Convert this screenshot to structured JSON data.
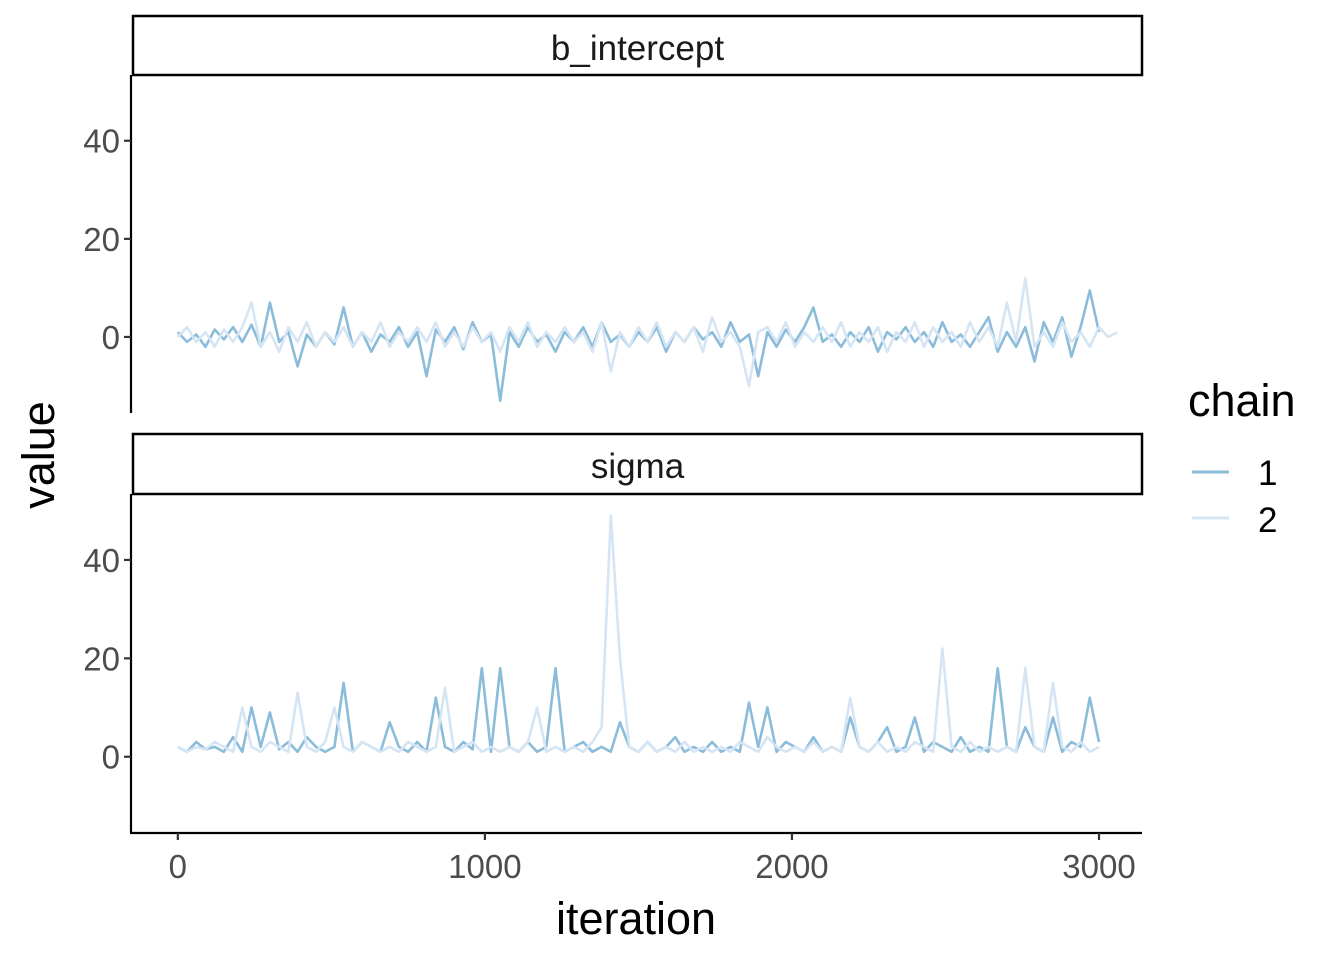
{
  "chart_data": {
    "type": "line",
    "xlabel": "iteration",
    "ylabel": "value",
    "legend_title": "chain",
    "legend_placement": "right",
    "grid": false,
    "xlim": [
      -146,
      3140
    ],
    "ylim": [
      -15.5,
      53.4
    ],
    "xticks": [
      0,
      1000,
      2000,
      3000
    ],
    "xtick_labels": [
      "0",
      "1000",
      "2000",
      "3000"
    ],
    "yticks": [
      0,
      20,
      40
    ],
    "ytick_labels": [
      "0",
      "20",
      "40"
    ],
    "x_step": 30,
    "chains": [
      {
        "name": "1",
        "color": "#8bbcda"
      },
      {
        "name": "2",
        "color": "#d5e5f4"
      }
    ],
    "panels": [
      {
        "title": "b_intercept",
        "series": [
          {
            "name": "1",
            "values": [
              1,
              -1,
              0.5,
              -2,
              1.5,
              -0.5,
              2,
              -1,
              2.5,
              -2,
              7,
              -1,
              1,
              -6,
              0.5,
              -2,
              1,
              -1.5,
              6,
              -2,
              1,
              -3,
              0.5,
              -1,
              2,
              -2,
              1,
              -8,
              1.5,
              -1,
              2,
              -2.5,
              3,
              -1,
              0.5,
              -13,
              1,
              -2,
              2,
              -1,
              0.5,
              -3,
              1,
              -1,
              2,
              -2,
              3,
              -1,
              0.5,
              -2,
              1,
              -1,
              2,
              -3,
              1,
              -1,
              2,
              -0.5,
              1,
              -2,
              3,
              -1,
              0.5,
              -8,
              1,
              -2,
              1.5,
              -1,
              2,
              6,
              -1,
              0.5,
              -2,
              1,
              -1,
              2,
              -3,
              1,
              -0.5,
              2,
              -1,
              1,
              -2,
              3,
              -1,
              0.5,
              -2,
              1,
              4,
              -3,
              1,
              -2,
              2,
              -5,
              3,
              -1,
              4,
              -4,
              2,
              9.5,
              1
            ]
          },
          {
            "name": "2",
            "values": [
              0,
              2,
              -1,
              1,
              -2,
              1.5,
              -1,
              2,
              7,
              -2,
              1,
              -3,
              2,
              -1,
              3,
              -2,
              1,
              -1,
              2,
              -2,
              1,
              -1,
              3,
              -2,
              1,
              -1,
              2,
              -1,
              3,
              -2,
              1,
              -2,
              2,
              -1,
              1,
              -3,
              2,
              -1,
              3,
              -2,
              1,
              -1,
              2,
              -1,
              1,
              -3,
              3,
              -7,
              1,
              -2,
              2,
              -1,
              3,
              -2,
              1,
              -1,
              2,
              -3,
              4,
              -1,
              1,
              -2,
              -10,
              1,
              2,
              -1,
              3,
              -2,
              1,
              -1,
              2,
              -1,
              3,
              -2,
              1,
              -1,
              2,
              -3,
              1,
              -1,
              3,
              -2,
              2,
              -1,
              1,
              -2,
              3,
              -1,
              2,
              -2,
              7,
              -1,
              12,
              -2,
              1,
              -2,
              3,
              -1,
              1,
              -2,
              2,
              0,
              1
            ]
          }
        ]
      },
      {
        "title": "sigma",
        "series": [
          {
            "name": "1",
            "values": [
              2,
              1,
              3,
              1.5,
              2,
              1,
              4,
              1,
              10,
              2,
              9,
              1.5,
              3,
              1,
              4,
              2,
              1,
              2,
              15,
              1,
              3,
              2,
              1,
              7,
              2,
              1,
              3,
              1,
              12,
              2,
              1,
              3,
              1.5,
              18,
              1,
              18,
              2,
              1,
              3,
              1,
              2,
              18,
              1,
              2,
              3,
              1,
              2,
              1,
              7,
              2,
              1,
              3,
              1,
              2,
              4,
              1,
              2,
              1,
              3,
              1,
              2,
              1,
              11,
              2,
              10,
              1,
              3,
              2,
              1,
              4,
              1,
              2,
              1,
              8,
              2,
              1,
              3,
              6,
              1,
              2,
              8,
              1,
              3,
              2,
              1,
              4,
              1,
              2,
              1,
              18,
              2,
              1,
              6,
              2,
              1,
              8,
              1,
              3,
              2,
              12,
              3
            ]
          },
          {
            "name": "2",
            "values": [
              2,
              1,
              2,
              1.5,
              3,
              2,
              1,
              10,
              2,
              1,
              3,
              2,
              1,
              13,
              2,
              1,
              3,
              10,
              2,
              1,
              3,
              2,
              1,
              2,
              1,
              3,
              2,
              1,
              2,
              14,
              1,
              2,
              3,
              1,
              2,
              1,
              2,
              1,
              3,
              10,
              1,
              2,
              1,
              2,
              1,
              3,
              6,
              49,
              20,
              2,
              1,
              3,
              1,
              2,
              1,
              3,
              1,
              2,
              1,
              2,
              1,
              3,
              2,
              1,
              4,
              2,
              1,
              2,
              1,
              3,
              1,
              2,
              1,
              12,
              2,
              1,
              3,
              1,
              2,
              1,
              3,
              2,
              1,
              22,
              2,
              1,
              3,
              1,
              2,
              1,
              2,
              1,
              18,
              2,
              1,
              15,
              2,
              1,
              3,
              1,
              2
            ]
          }
        ]
      }
    ]
  }
}
